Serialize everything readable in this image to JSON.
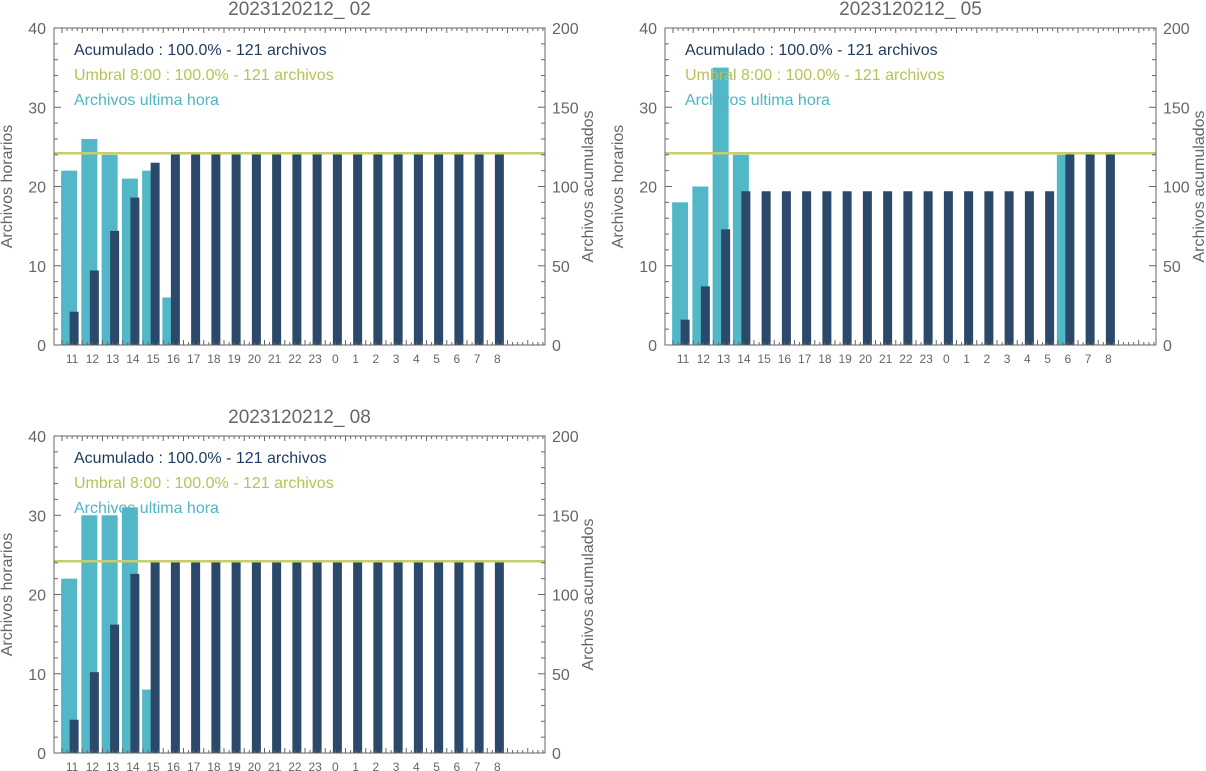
{
  "colors": {
    "hourly": "#52b7c6",
    "cumulative": "#2b4a6b",
    "threshold": "#c6cf6a",
    "axis": "#666666",
    "legend_acum": "#1e3a5f",
    "legend_umbral": "#b9c253",
    "legend_hourly": "#4fb5c4"
  },
  "chart_data": [
    {
      "type": "bar",
      "title": "2023120212_ 02",
      "ylabel": "Archivos horarios",
      "y2label": "Archivos acumulados",
      "ylim": [
        0,
        40
      ],
      "y2lim": [
        0,
        200
      ],
      "yticks": [
        "0",
        "10",
        "20",
        "30",
        "40"
      ],
      "y2ticks": [
        "0",
        "50",
        "100",
        "150",
        "200"
      ],
      "categories": [
        "11",
        "12",
        "13",
        "14",
        "15",
        "16",
        "17",
        "18",
        "19",
        "20",
        "21",
        "22",
        "23",
        "0",
        "1",
        "2",
        "3",
        "4",
        "5",
        "6",
        "7",
        "8"
      ],
      "series": [
        {
          "name": "Archivos ultima hora",
          "values": [
            22,
            26,
            24,
            21,
            22,
            6,
            0,
            0,
            0,
            0,
            0,
            0,
            0,
            0,
            0,
            0,
            0,
            0,
            0,
            0,
            0,
            0
          ]
        },
        {
          "name": "Acumulado",
          "values": [
            21,
            47,
            72,
            93,
            115,
            121,
            121,
            121,
            121,
            121,
            121,
            121,
            121,
            121,
            121,
            121,
            121,
            121,
            121,
            121,
            121,
            121
          ]
        }
      ],
      "threshold": 121,
      "legend": [
        "Acumulado : 100.0% - 121 archivos",
        "Umbral 8:00 : 100.0% - 121 archivos",
        "Archivos ultima hora"
      ]
    },
    {
      "type": "bar",
      "title": "2023120212_ 05",
      "ylabel": "Archivos horarios",
      "y2label": "Archivos acumulados",
      "ylim": [
        0,
        40
      ],
      "y2lim": [
        0,
        200
      ],
      "yticks": [
        "0",
        "10",
        "20",
        "30",
        "40"
      ],
      "y2ticks": [
        "0",
        "50",
        "100",
        "150",
        "200"
      ],
      "categories": [
        "11",
        "12",
        "13",
        "14",
        "15",
        "16",
        "17",
        "18",
        "19",
        "20",
        "21",
        "22",
        "23",
        "0",
        "1",
        "2",
        "3",
        "4",
        "5",
        "6",
        "7",
        "8"
      ],
      "series": [
        {
          "name": "Archivos ultima hora",
          "values": [
            18,
            20,
            35,
            24,
            0,
            0,
            0,
            0,
            0,
            0,
            0,
            0,
            0,
            0,
            0,
            0,
            0,
            0,
            0,
            24,
            0,
            0
          ]
        },
        {
          "name": "Acumulado",
          "values": [
            16,
            37,
            73,
            97,
            97,
            97,
            97,
            97,
            97,
            97,
            97,
            97,
            97,
            97,
            97,
            97,
            97,
            97,
            97,
            121,
            121,
            121
          ]
        }
      ],
      "threshold": 121,
      "legend": [
        "Acumulado : 100.0% - 121 archivos",
        "Umbral 8:00 : 100.0% - 121 archivos",
        "Archivos ultima hora"
      ]
    },
    {
      "type": "bar",
      "title": "2023120212_ 08",
      "ylabel": "Archivos horarios",
      "y2label": "Archivos acumulados",
      "ylim": [
        0,
        40
      ],
      "y2lim": [
        0,
        200
      ],
      "yticks": [
        "0",
        "10",
        "20",
        "30",
        "40"
      ],
      "y2ticks": [
        "0",
        "50",
        "100",
        "150",
        "200"
      ],
      "categories": [
        "11",
        "12",
        "13",
        "14",
        "15",
        "16",
        "17",
        "18",
        "19",
        "20",
        "21",
        "22",
        "23",
        "0",
        "1",
        "2",
        "3",
        "4",
        "5",
        "6",
        "7",
        "8"
      ],
      "series": [
        {
          "name": "Archivos ultima hora",
          "values": [
            22,
            30,
            30,
            31,
            8,
            0,
            0,
            0,
            0,
            0,
            0,
            0,
            0,
            0,
            0,
            0,
            0,
            0,
            0,
            0,
            0,
            0
          ]
        },
        {
          "name": "Acumulado",
          "values": [
            21,
            51,
            81,
            113,
            121,
            121,
            121,
            121,
            121,
            121,
            121,
            121,
            121,
            121,
            121,
            121,
            121,
            121,
            121,
            121,
            121,
            121
          ]
        }
      ],
      "threshold": 121,
      "legend": [
        "Acumulado : 100.0% - 121 archivos",
        "Umbral 8:00 : 100.0% - 121 archivos",
        "Archivos ultima hora"
      ]
    }
  ]
}
